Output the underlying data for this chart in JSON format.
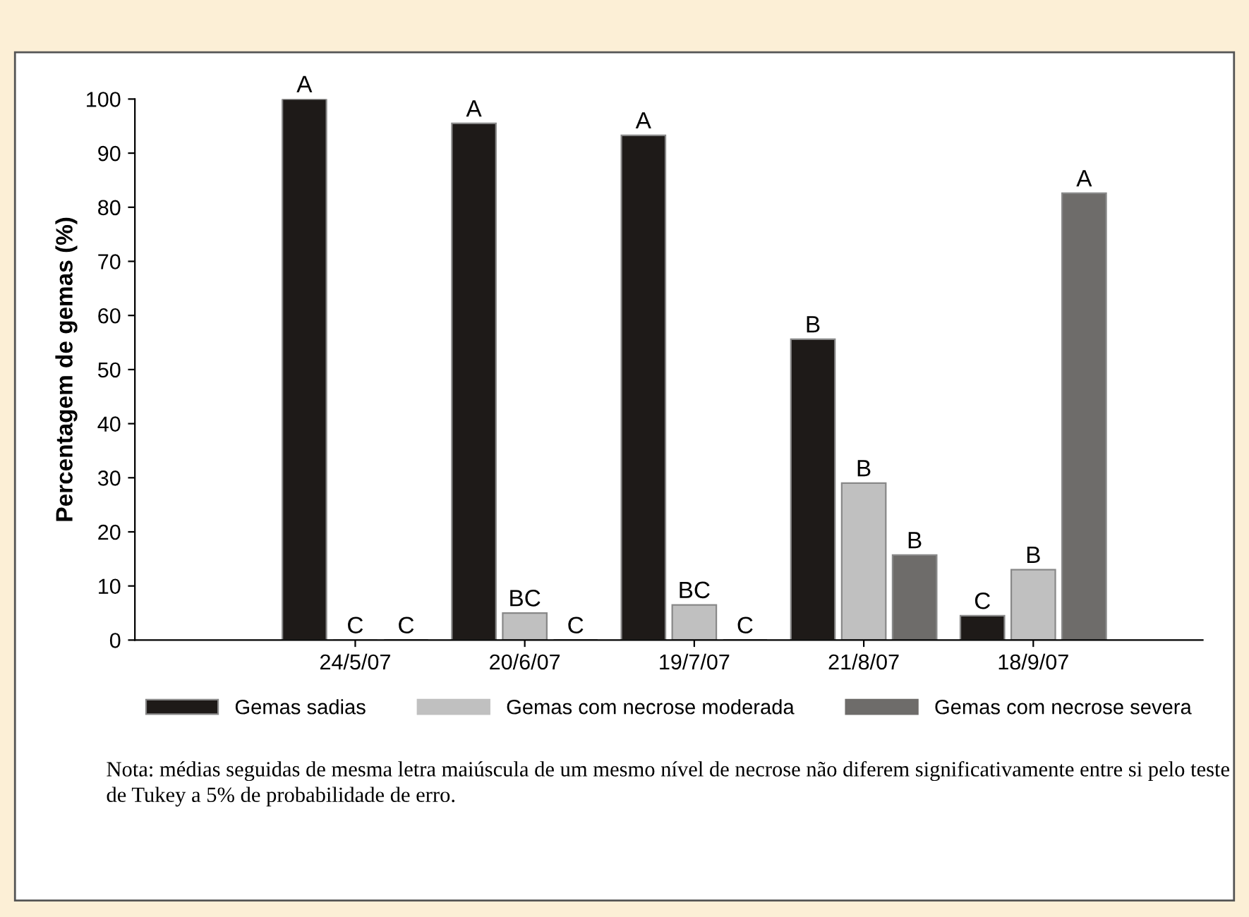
{
  "chart_data": {
    "type": "bar",
    "ylabel": "Percentagem de gemas (%)",
    "categories": [
      "24/5/07",
      "20/6/07",
      "19/7/07",
      "21/8/07",
      "18/9/07"
    ],
    "series": [
      {
        "name": "Gemas sadias",
        "color": "#1e1a18",
        "values": [
          100,
          95.5,
          93.3,
          55.6,
          4.5
        ],
        "value_labels": [
          "A",
          "A",
          "A",
          "B",
          "C"
        ]
      },
      {
        "name": "Gemas com necrose moderada",
        "color": "#c0c0c0",
        "values": [
          0,
          5,
          6.5,
          29,
          13
        ],
        "value_labels": [
          "C",
          "BC",
          "BC",
          "B",
          "B"
        ]
      },
      {
        "name": "Gemas com necrose severa",
        "color": "#6e6c6a",
        "values": [
          0,
          0,
          0,
          15.7,
          82.6
        ],
        "value_labels": [
          "C",
          "C",
          "C",
          "B",
          "A"
        ]
      }
    ],
    "ylim": [
      0,
      100
    ],
    "yticks": [
      0,
      10,
      20,
      30,
      40,
      50,
      60,
      70,
      80,
      90,
      100
    ],
    "grid": false,
    "legend": "bottom",
    "annotations": [
      "Nota: médias seguidas de mesma letra maiúscula de um mesmo nível de necrose não diferem significativamente entre si pelo teste de Tukey a 5% de probabilidade de erro."
    ]
  }
}
